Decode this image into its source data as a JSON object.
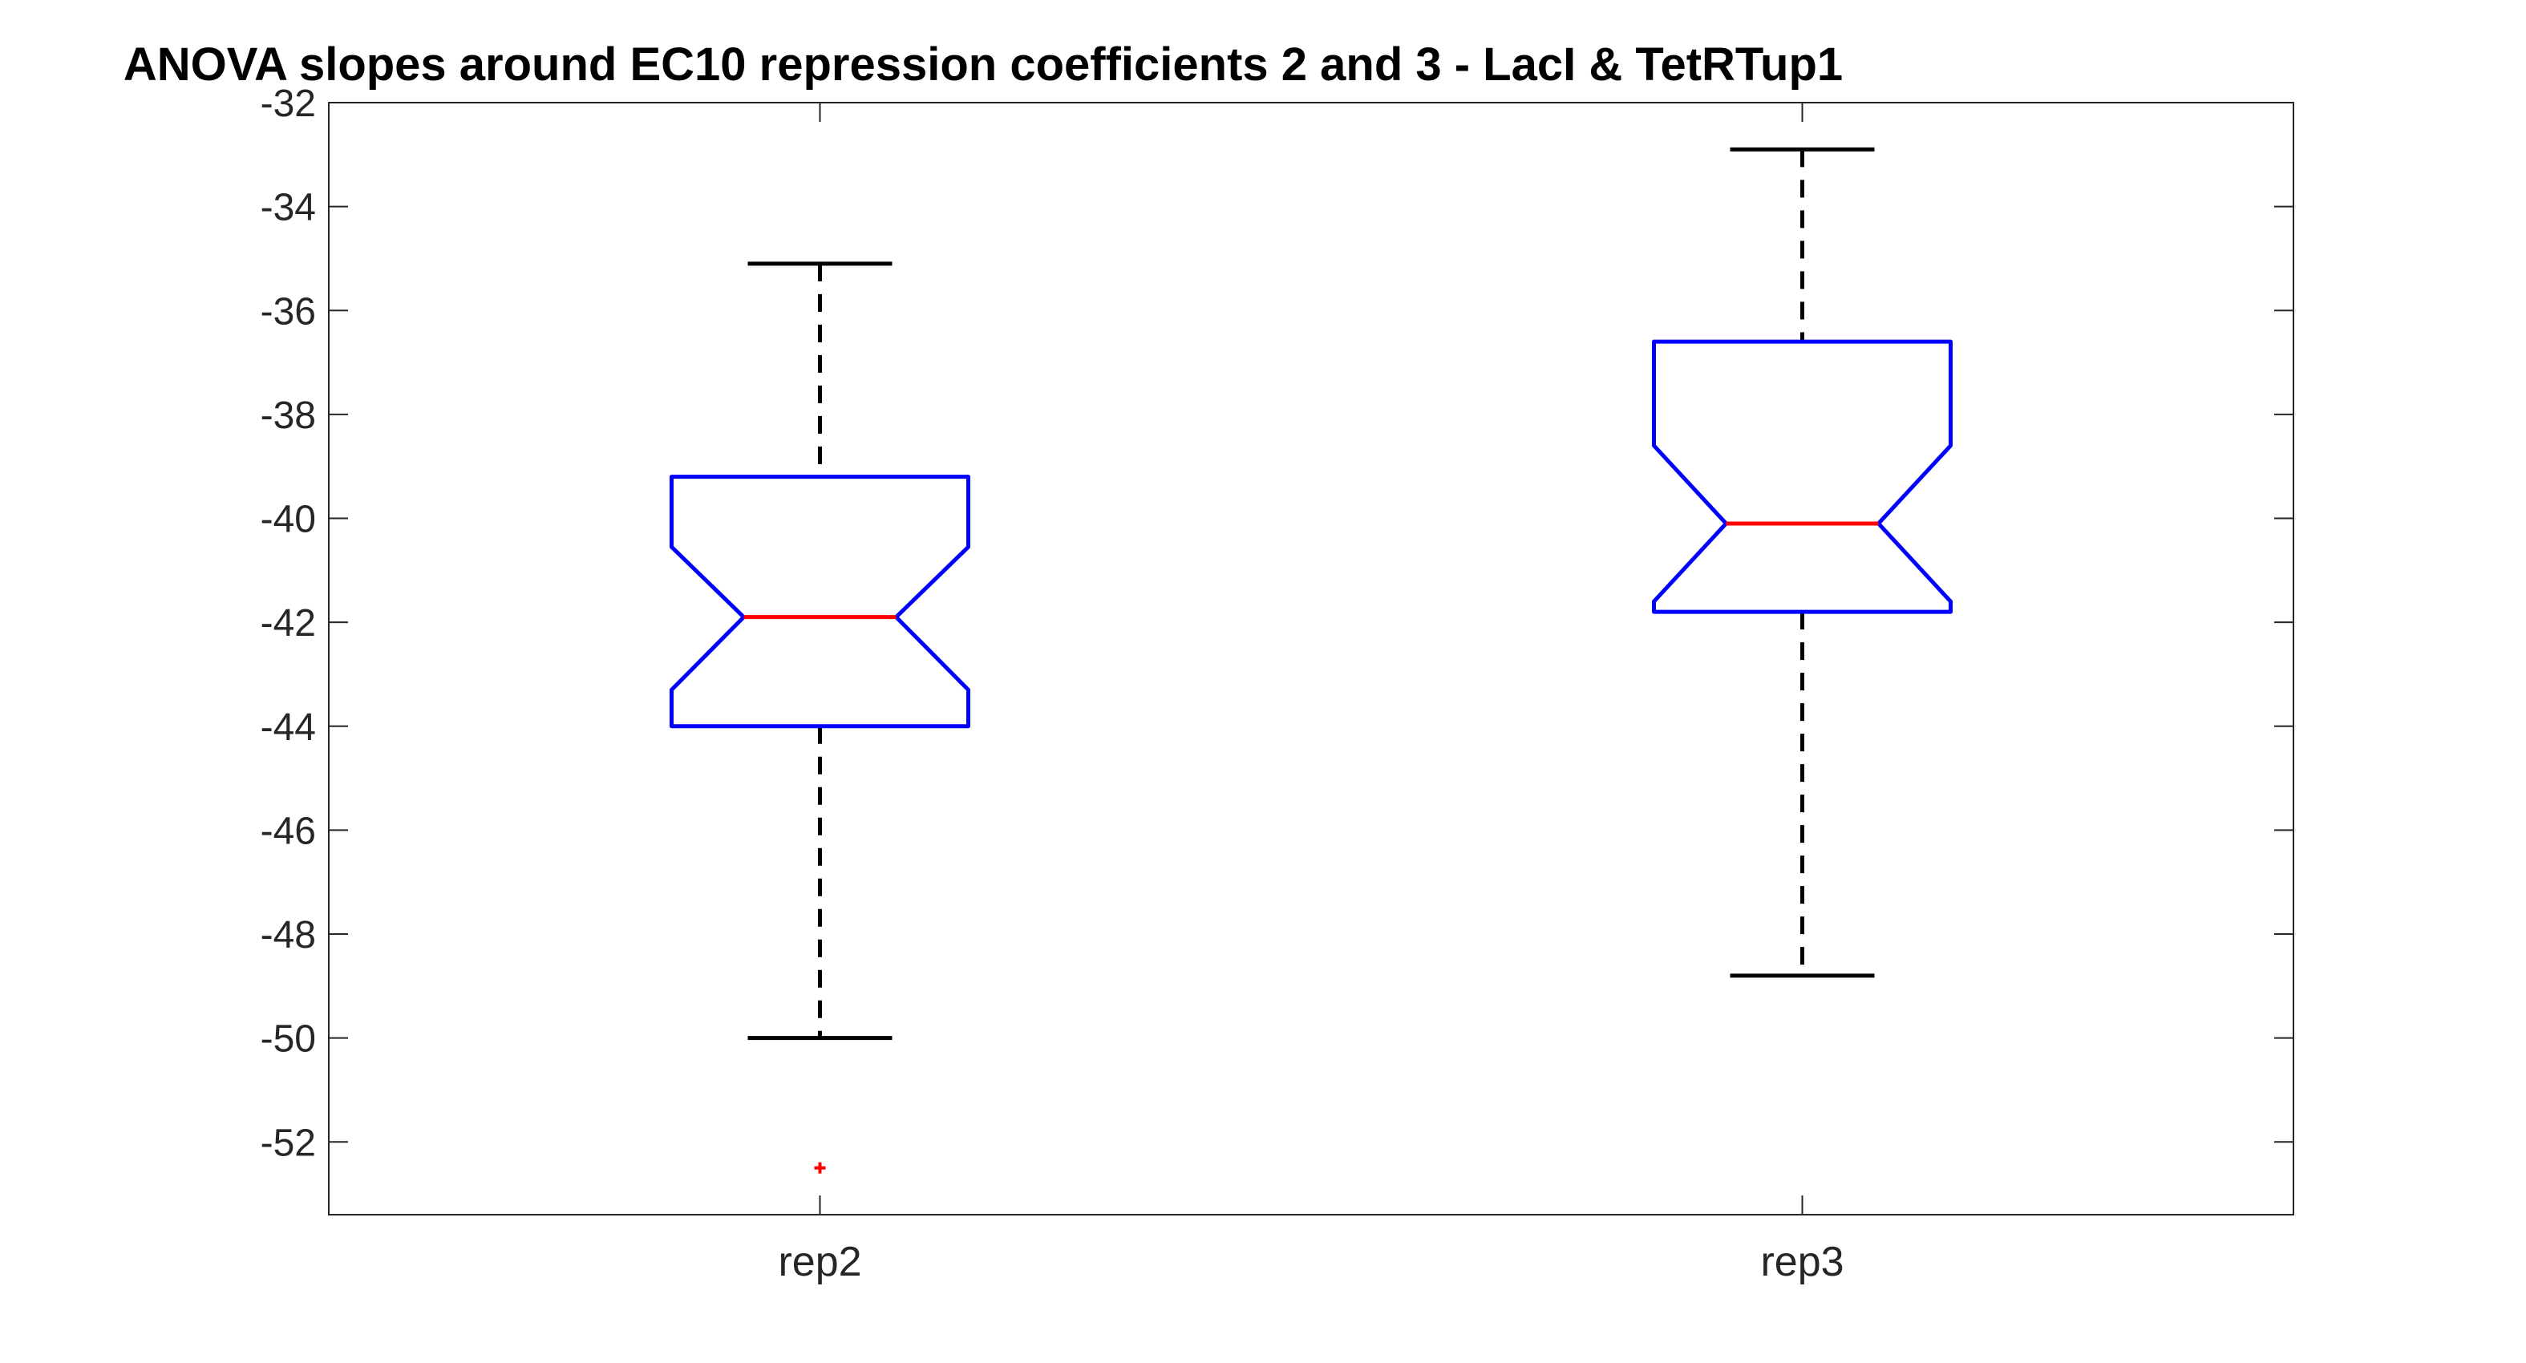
{
  "chart_data": {
    "type": "box",
    "title": "ANOVA slopes around EC10 repression coefficients 2 and 3 - LacI & TetRTup1",
    "xlabel": "",
    "ylabel": "",
    "ylim": [
      -53.4,
      -32
    ],
    "yticks": [
      -32,
      -34,
      -36,
      -38,
      -40,
      -42,
      -44,
      -46,
      -48,
      -50,
      -52
    ],
    "ytick_labels": [
      "-32",
      "-34",
      "-36",
      "-38",
      "-40",
      "-42",
      "-44",
      "-46",
      "-48",
      "-50",
      "-52"
    ],
    "categories": [
      "rep2",
      "rep3"
    ],
    "notched": true,
    "grid": false,
    "boxes": [
      {
        "name": "rep2",
        "whisker_high": -35.1,
        "q3": -39.2,
        "notch_high": -40.55,
        "median": -41.9,
        "notch_low": -43.3,
        "q1": -44.0,
        "whisker_low": -50.0,
        "outliers": [
          -52.5
        ]
      },
      {
        "name": "rep3",
        "whisker_high": -32.9,
        "q3": -36.6,
        "notch_high": -38.6,
        "median": -40.1,
        "notch_low": -41.6,
        "q1": -41.8,
        "whisker_low": -48.8,
        "outliers": []
      }
    ],
    "colors": {
      "box": "#0000ff",
      "median": "#ff0000",
      "whisker": "#000000",
      "outlier": "#ff0000",
      "axes": "#262626"
    }
  }
}
